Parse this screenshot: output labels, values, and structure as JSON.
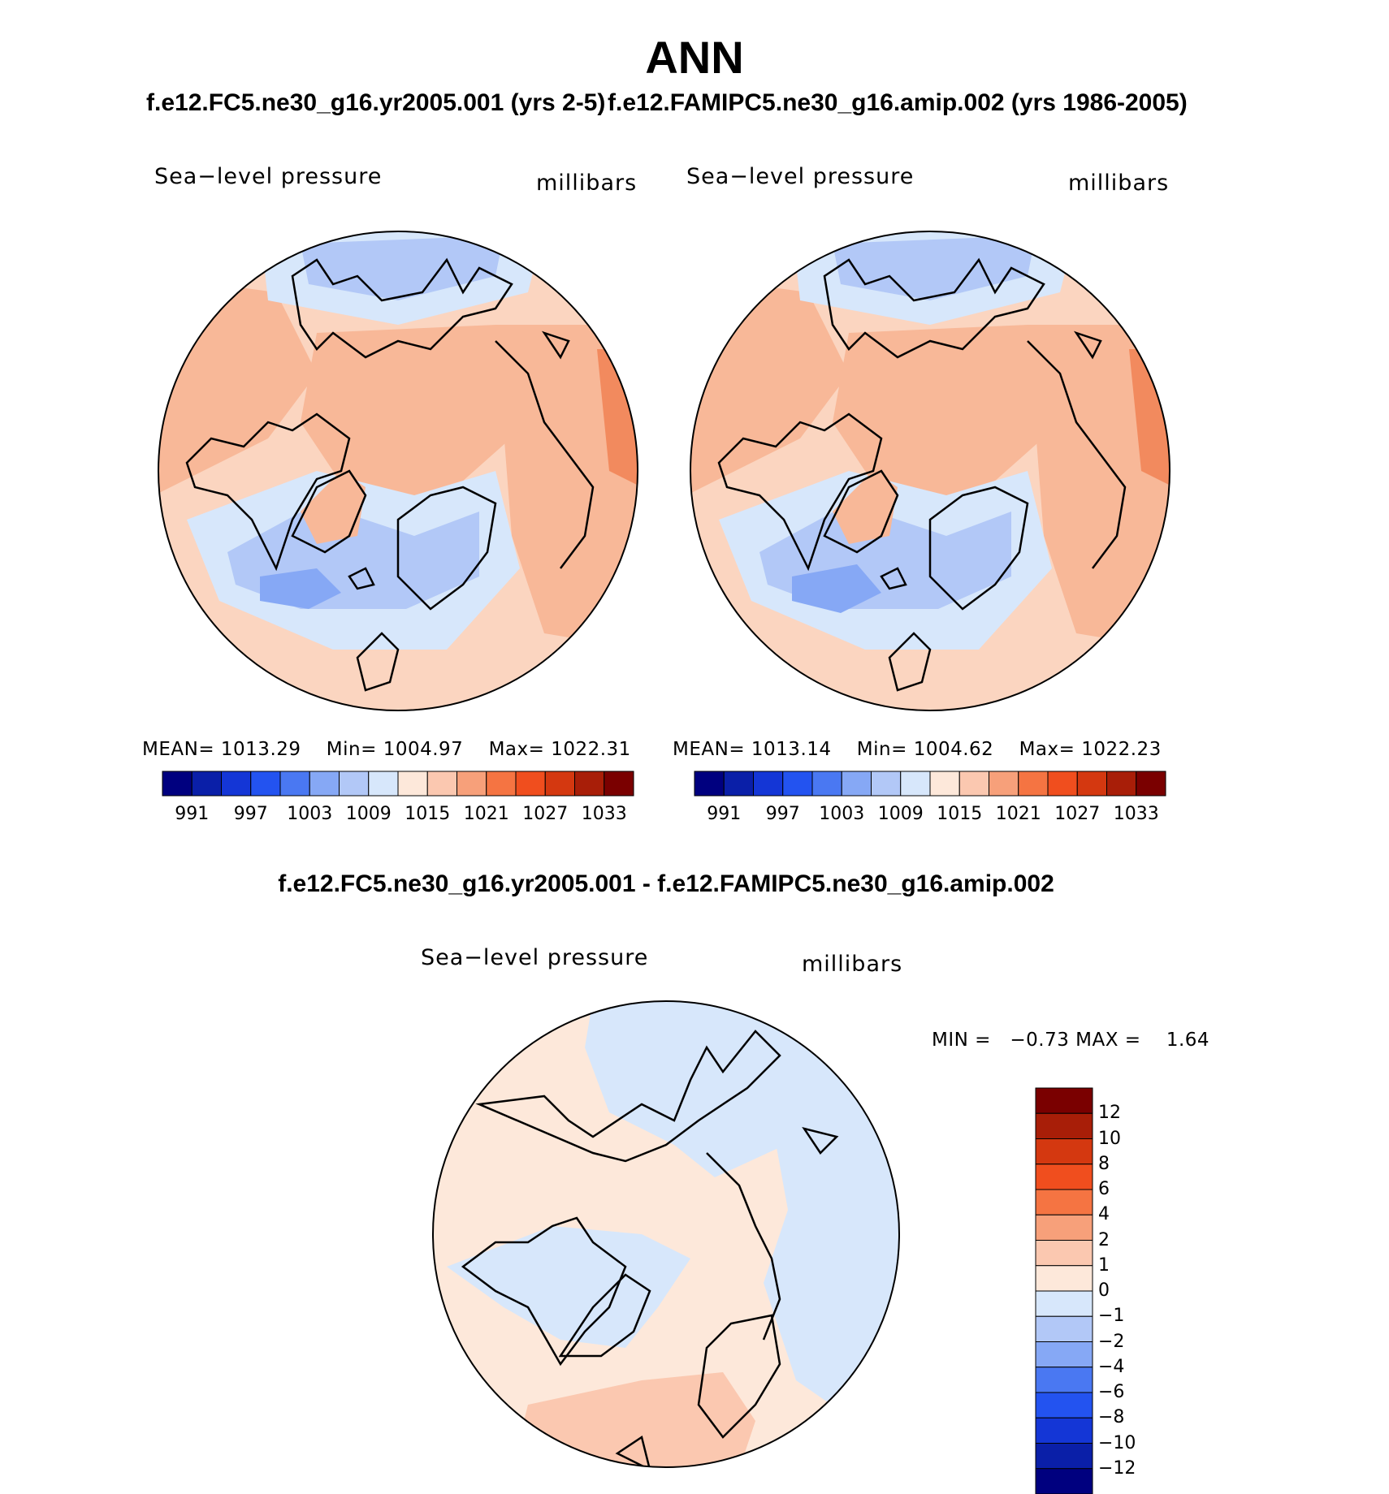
{
  "title": "ANN",
  "colors": {
    "abs_palette": [
      "#00007f",
      "#0a1fa8",
      "#1436d6",
      "#2353f0",
      "#4a78f2",
      "#86a8f5",
      "#b2c8f7",
      "#d7e7fb",
      "#fde8da",
      "#fbc8b0",
      "#f7a07a",
      "#f57442",
      "#f04e1e",
      "#d43810",
      "#a81e08",
      "#7a0000"
    ],
    "diff_palette": [
      "#00007f",
      "#0a1fa8",
      "#1436d6",
      "#2353f0",
      "#4a78f2",
      "#86a8f5",
      "#b2c8f7",
      "#d7e7fb",
      "#fde8da",
      "#fbc8b0",
      "#f7a07a",
      "#f57442",
      "#f04e1e",
      "#d43810",
      "#a81e08",
      "#7a0000"
    ]
  },
  "chart_data": [
    {
      "type": "heatmap",
      "id": "panel-1",
      "title": "f.e12.FC5.ne30_g16.yr2005.001 (yrs 2-5)",
      "variable": "Sea−level pressure",
      "units": "millibars",
      "projection": "north-polar-stereographic",
      "stats": {
        "mean_label": "MEAN=",
        "mean": "1013.29",
        "min_label": "Min=",
        "min": "1004.97",
        "max_label": "Max=",
        "max": "1022.31"
      },
      "colorbar": {
        "orientation": "horizontal",
        "ticks": [
          "991",
          "997",
          "1003",
          "1009",
          "1015",
          "1021",
          "1027",
          "1033"
        ],
        "n_colors": 16
      }
    },
    {
      "type": "heatmap",
      "id": "panel-2",
      "title": "f.e12.FAMIPC5.ne30_g16.amip.002 (yrs 1986-2005)",
      "variable": "Sea−level pressure",
      "units": "millibars",
      "projection": "north-polar-stereographic",
      "stats": {
        "mean_label": "MEAN=",
        "mean": "1013.14",
        "min_label": "Min=",
        "min": "1004.62",
        "max_label": "Max=",
        "max": "1022.23"
      },
      "colorbar": {
        "orientation": "horizontal",
        "ticks": [
          "991",
          "997",
          "1003",
          "1009",
          "1015",
          "1021",
          "1027",
          "1033"
        ],
        "n_colors": 16
      }
    },
    {
      "type": "heatmap",
      "id": "panel-diff",
      "title": "f.e12.FC5.ne30_g16.yr2005.001 - f.e12.FAMIPC5.ne30_g16.amip.002",
      "variable": "Sea−level pressure",
      "units": "millibars",
      "projection": "north-polar-stereographic",
      "stats": {
        "min_label": "MIN =",
        "min": "−0.73",
        "max_label": "MAX =",
        "max": "1.64"
      },
      "colorbar": {
        "orientation": "vertical",
        "ticks": [
          "12",
          "10",
          "8",
          "6",
          "4",
          "2",
          "1",
          "0",
          "−1",
          "−2",
          "−4",
          "−6",
          "−8",
          "−10",
          "−12"
        ],
        "n_colors": 16
      }
    }
  ]
}
